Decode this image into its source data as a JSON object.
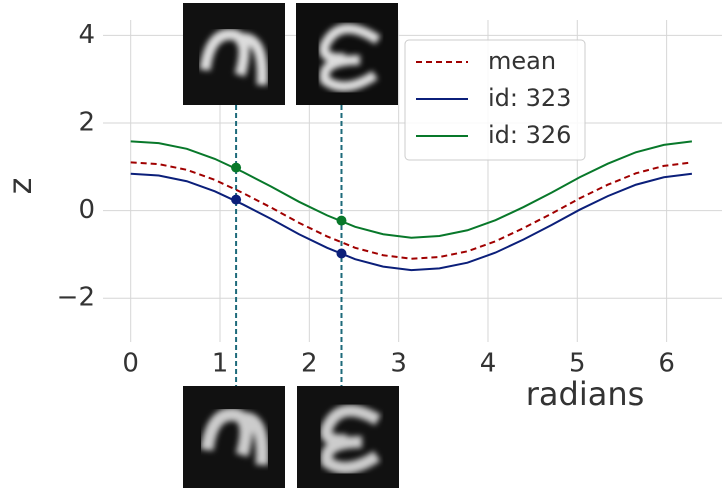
{
  "chart_data": {
    "type": "line",
    "xlabel": "radians",
    "ylabel": "z",
    "x": [
      0,
      0.314,
      0.628,
      0.942,
      1.257,
      1.571,
      1.885,
      2.199,
      2.513,
      2.827,
      3.142,
      3.456,
      3.77,
      4.084,
      4.398,
      4.712,
      5.027,
      5.341,
      5.655,
      5.969,
      6.283
    ],
    "series": [
      {
        "name": "mean",
        "color": "#a00000",
        "dashed": true,
        "values": [
          1.1,
          1.06,
          0.93,
          0.7,
          0.4,
          0.07,
          -0.28,
          -0.59,
          -0.85,
          -1.02,
          -1.1,
          -1.06,
          -0.93,
          -0.7,
          -0.4,
          -0.07,
          0.28,
          0.59,
          0.85,
          1.02,
          1.1
        ]
      },
      {
        "name": "id: 323",
        "color": "#0b1f7a",
        "dashed": false,
        "values": [
          0.84,
          0.8,
          0.67,
          0.44,
          0.14,
          -0.19,
          -0.54,
          -0.85,
          -1.11,
          -1.28,
          -1.36,
          -1.32,
          -1.19,
          -0.96,
          -0.66,
          -0.33,
          0.02,
          0.33,
          0.59,
          0.76,
          0.84
        ],
        "marker_values": [
          0.25,
          -0.98
        ]
      },
      {
        "name": "id: 326",
        "color": "#08782a",
        "dashed": false,
        "values": [
          1.58,
          1.54,
          1.41,
          1.18,
          0.88,
          0.55,
          0.2,
          -0.11,
          -0.37,
          -0.54,
          -0.62,
          -0.58,
          -0.45,
          -0.22,
          0.08,
          0.41,
          0.76,
          1.07,
          1.33,
          1.5,
          1.58
        ],
        "marker_values": [
          0.98,
          -0.23
        ]
      }
    ],
    "markers_x": [
      1.18,
      2.36
    ],
    "marker_line_color": "#1d6a7a",
    "xlim": [
      -0.31,
      6.62
    ],
    "ylim": [
      -3,
      4.35
    ],
    "xticks": [
      0,
      1,
      2,
      3,
      4,
      5,
      6
    ],
    "yticks": [
      {
        "value": -2,
        "label": "−2"
      },
      0,
      2,
      4
    ],
    "grid": true,
    "legend": "upper right"
  }
}
